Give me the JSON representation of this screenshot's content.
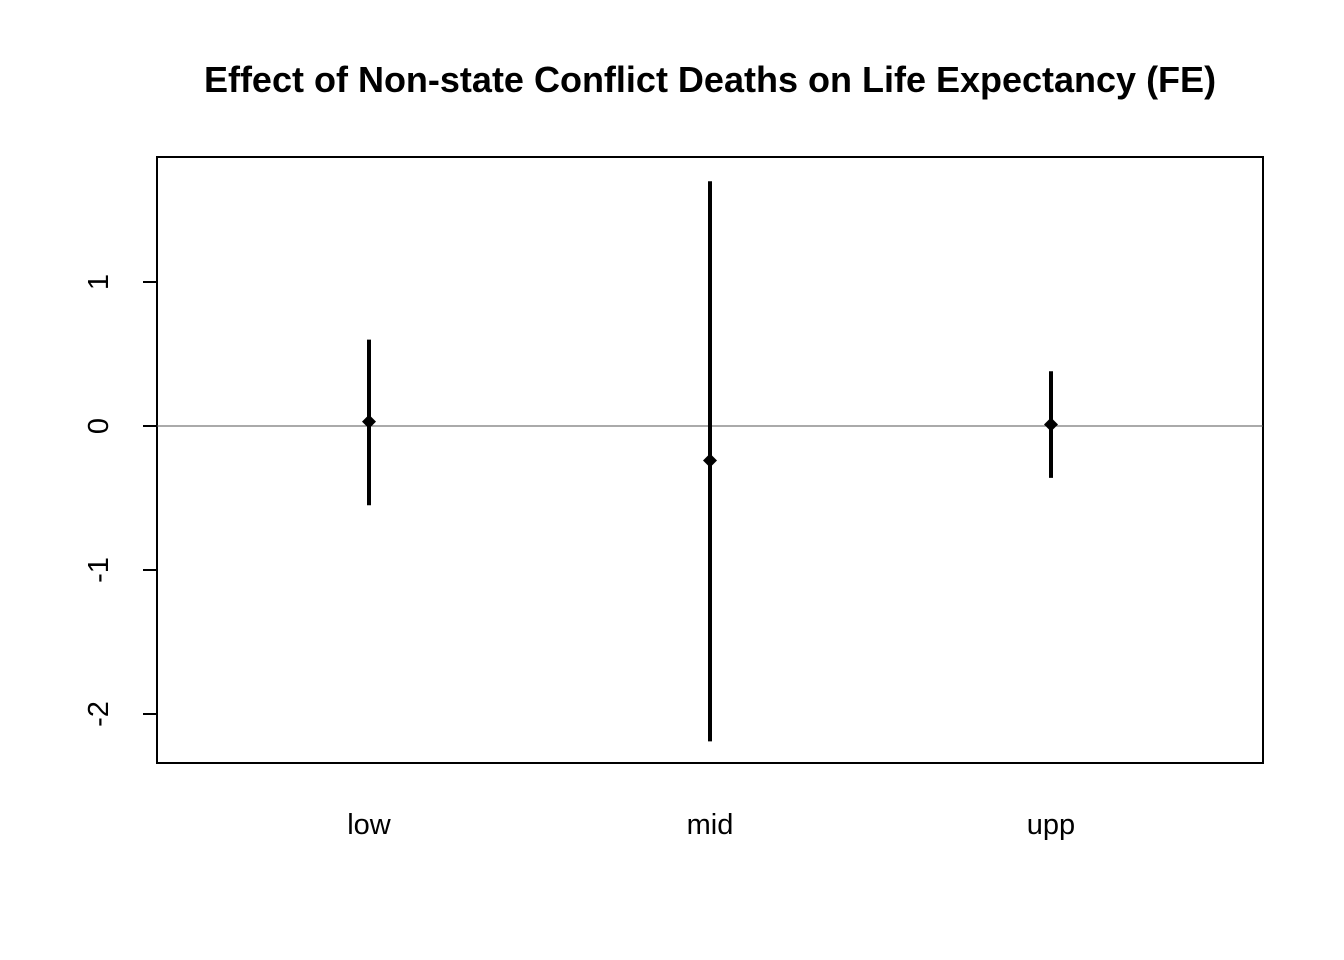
{
  "chart_data": {
    "type": "errorbar",
    "title": "Effect of Non-state Conflict Deaths on Life Expectancy (FE)",
    "xlabel": "",
    "ylabel": "",
    "categories": [
      "low",
      "mid",
      "upp"
    ],
    "estimates": [
      0.03,
      -0.24,
      0.01
    ],
    "lower": [
      -0.55,
      -2.19,
      -0.36
    ],
    "upper": [
      0.6,
      1.7,
      0.38
    ],
    "y_ticks": [
      -2,
      -1,
      0,
      1
    ],
    "ylim": [
      -2.34,
      1.87
    ],
    "reference_line": 0,
    "grid": false,
    "legend": "none"
  }
}
